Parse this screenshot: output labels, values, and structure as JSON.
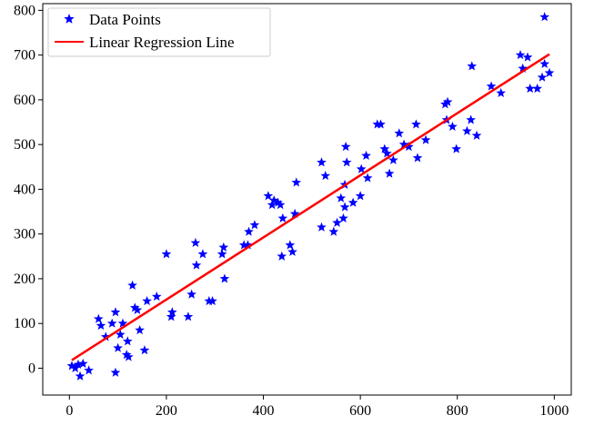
{
  "chart_data": {
    "type": "scatter",
    "title": "",
    "xlabel": "",
    "ylabel": "",
    "xlim": [
      -55,
      1035
    ],
    "ylim": [
      -60,
      815
    ],
    "xticks": [
      0,
      200,
      400,
      600,
      800,
      1000
    ],
    "yticks": [
      0,
      100,
      200,
      300,
      400,
      500,
      600,
      700,
      800
    ],
    "grid": false,
    "legend_position": "top-left",
    "series": [
      {
        "name": "Data Points",
        "kind": "scatter",
        "marker": "star",
        "color": "#0000ff",
        "points": [
          [
            5,
            5
          ],
          [
            12,
            0
          ],
          [
            18,
            8
          ],
          [
            22,
            -18
          ],
          [
            28,
            10
          ],
          [
            40,
            -5
          ],
          [
            60,
            110
          ],
          [
            65,
            95
          ],
          [
            75,
            70
          ],
          [
            88,
            100
          ],
          [
            95,
            125
          ],
          [
            95,
            -10
          ],
          [
            100,
            45
          ],
          [
            105,
            75
          ],
          [
            110,
            100
          ],
          [
            118,
            30
          ],
          [
            120,
            60
          ],
          [
            122,
            25
          ],
          [
            130,
            185
          ],
          [
            135,
            135
          ],
          [
            140,
            130
          ],
          [
            145,
            85
          ],
          [
            155,
            40
          ],
          [
            160,
            150
          ],
          [
            180,
            160
          ],
          [
            200,
            255
          ],
          [
            210,
            115
          ],
          [
            212,
            125
          ],
          [
            245,
            115
          ],
          [
            252,
            165
          ],
          [
            260,
            280
          ],
          [
            262,
            230
          ],
          [
            275,
            255
          ],
          [
            288,
            150
          ],
          [
            295,
            150
          ],
          [
            315,
            255
          ],
          [
            318,
            270
          ],
          [
            320,
            200
          ],
          [
            360,
            275
          ],
          [
            368,
            275
          ],
          [
            370,
            305
          ],
          [
            382,
            320
          ],
          [
            410,
            385
          ],
          [
            418,
            365
          ],
          [
            422,
            375
          ],
          [
            430,
            370
          ],
          [
            435,
            365
          ],
          [
            438,
            250
          ],
          [
            440,
            335
          ],
          [
            455,
            275
          ],
          [
            460,
            260
          ],
          [
            465,
            345
          ],
          [
            468,
            415
          ],
          [
            520,
            460
          ],
          [
            520,
            315
          ],
          [
            528,
            430
          ],
          [
            545,
            305
          ],
          [
            552,
            325
          ],
          [
            560,
            380
          ],
          [
            565,
            335
          ],
          [
            568,
            360
          ],
          [
            568,
            410
          ],
          [
            570,
            495
          ],
          [
            572,
            460
          ],
          [
            585,
            370
          ],
          [
            600,
            385
          ],
          [
            602,
            445
          ],
          [
            612,
            475
          ],
          [
            615,
            425
          ],
          [
            635,
            545
          ],
          [
            642,
            545
          ],
          [
            650,
            490
          ],
          [
            655,
            480
          ],
          [
            660,
            435
          ],
          [
            668,
            465
          ],
          [
            680,
            525
          ],
          [
            690,
            500
          ],
          [
            700,
            495
          ],
          [
            715,
            545
          ],
          [
            718,
            470
          ],
          [
            735,
            510
          ],
          [
            775,
            590
          ],
          [
            778,
            555
          ],
          [
            780,
            595
          ],
          [
            790,
            540
          ],
          [
            798,
            490
          ],
          [
            820,
            530
          ],
          [
            828,
            555
          ],
          [
            830,
            675
          ],
          [
            840,
            520
          ],
          [
            870,
            630
          ],
          [
            890,
            615
          ],
          [
            930,
            700
          ],
          [
            935,
            670
          ],
          [
            945,
            695
          ],
          [
            950,
            625
          ],
          [
            965,
            625
          ],
          [
            975,
            650
          ],
          [
            980,
            680
          ],
          [
            980,
            785
          ],
          [
            990,
            660
          ]
        ]
      },
      {
        "name": "Linear Regression Line",
        "kind": "line",
        "color": "#ff0000",
        "points": [
          [
            5,
            18
          ],
          [
            990,
            702
          ]
        ]
      }
    ]
  }
}
